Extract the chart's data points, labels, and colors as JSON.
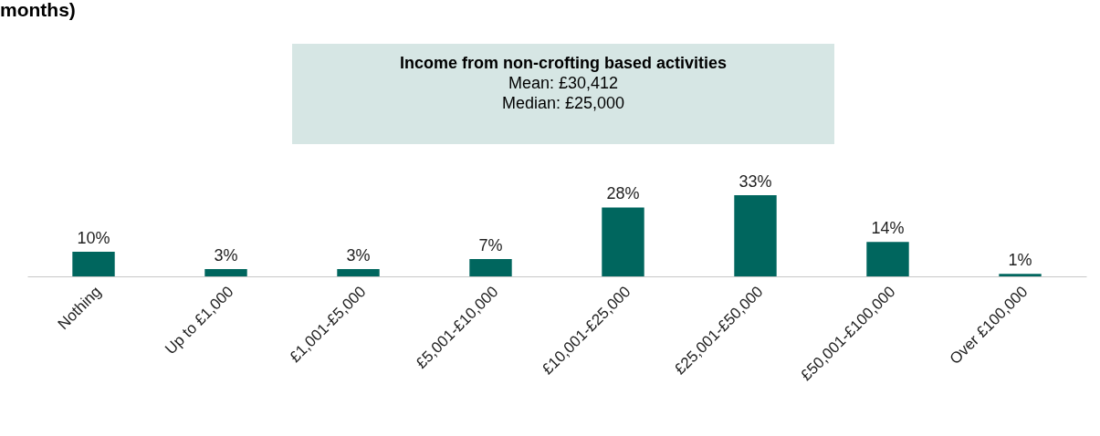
{
  "chart_data": {
    "type": "bar",
    "title": "months)",
    "annotations": [
      "Income from non-crofting based activities",
      "Mean: £30,412",
      "Median: £25,000"
    ],
    "categories": [
      "Nothing",
      "Up to £1,000",
      "£1,001-£5,000",
      "£5,001-£10,000",
      "£10,001-£25,000",
      "£25,001-£50,000",
      "£50,001-£100,000",
      "Over £100,000"
    ],
    "values": [
      10,
      3,
      3,
      7,
      28,
      33,
      14,
      1
    ],
    "value_labels": [
      "10%",
      "3%",
      "3%",
      "7%",
      "28%",
      "33%",
      "14%",
      "1%"
    ],
    "color": "#00665e"
  }
}
